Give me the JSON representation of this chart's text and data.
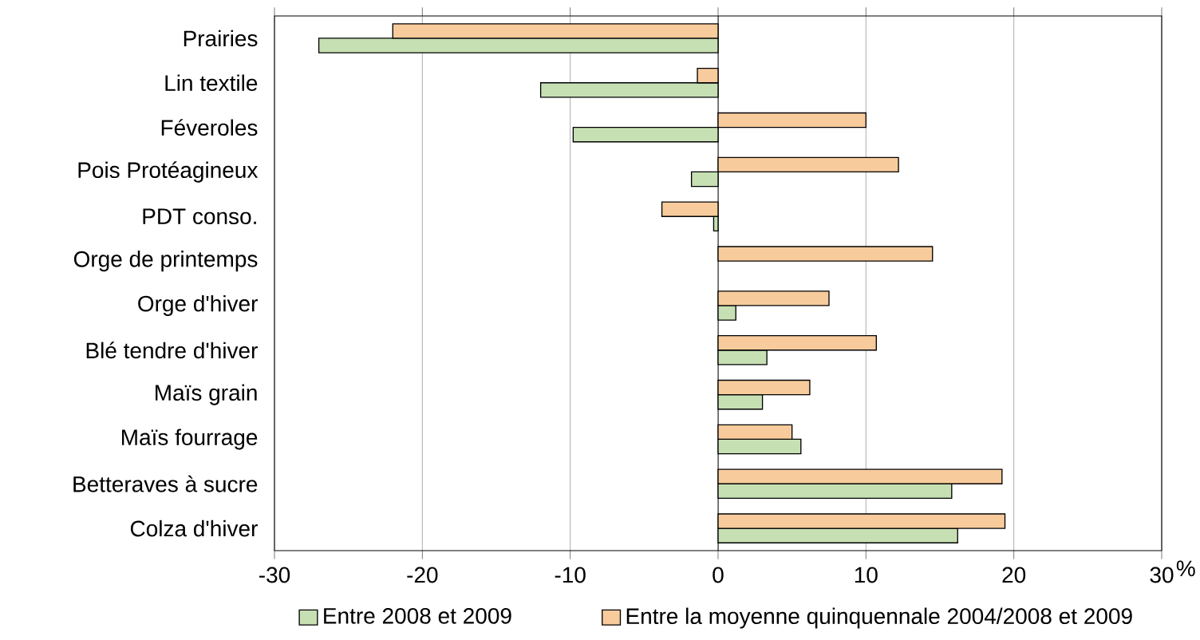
{
  "chart_data": {
    "type": "bar",
    "orientation": "horizontal",
    "categories": [
      "Prairies",
      "Lin textile",
      "Féveroles",
      "Pois Protéagineux",
      "PDT conso.",
      "Orge de printemps",
      "Orge d'hiver",
      "Blé tendre d'hiver",
      "Maïs grain",
      "Maïs fourrage",
      "Betteraves à sucre",
      "Colza d'hiver"
    ],
    "series": [
      {
        "name": "Entre 2008 et 2009",
        "color": "#c6e0b4",
        "values": [
          -27,
          -12,
          -9.8,
          -1.8,
          -0.3,
          null,
          1.2,
          3.3,
          3.0,
          5.6,
          15.8,
          16.2
        ]
      },
      {
        "name": "Entre la moyenne quinquennale 2004/2008 et 2009",
        "color": "#f8cb9c",
        "values": [
          -22,
          -1.4,
          10,
          12.2,
          -3.8,
          14.5,
          7.5,
          10.7,
          6.2,
          5.0,
          19.2,
          19.4
        ]
      }
    ],
    "xlim": [
      -30,
      30
    ],
    "xticks": [
      -30,
      -20,
      -10,
      0,
      10,
      20,
      30
    ],
    "xlabel": "%",
    "grid": "x",
    "legend": "bottom"
  }
}
